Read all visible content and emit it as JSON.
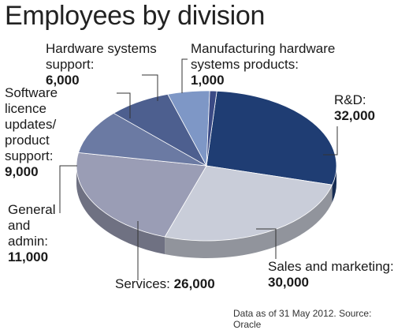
{
  "chart_data": {
    "type": "pie",
    "title": "Employees by division",
    "slices": [
      {
        "label": "R&D:",
        "value": 32000,
        "value_text": "32,000",
        "color": "#1f3d73"
      },
      {
        "label": "Sales and marketing:",
        "value": 30000,
        "value_text": "30,000",
        "color": "#c9cdd9"
      },
      {
        "label": "Services:",
        "value": 26000,
        "value_text": "26,000",
        "color": "#9a9db5"
      },
      {
        "label": "General and admin:",
        "value": 11000,
        "value_text": "11,000",
        "color": "#6b7aa3"
      },
      {
        "label": "Software licence updates/ product support:",
        "value": 9000,
        "value_text": "9,000",
        "color": "#4d5f8f"
      },
      {
        "label": "Hardware systems support:",
        "value": 6000,
        "value_text": "6,000",
        "color": "#7e97c6"
      },
      {
        "label": "Manufacturing hardware systems products:",
        "value": 1000,
        "value_text": "1,000",
        "color": "#3a4a85"
      }
    ],
    "source": "Data as of 31 May 2012. Source: Oracle"
  }
}
